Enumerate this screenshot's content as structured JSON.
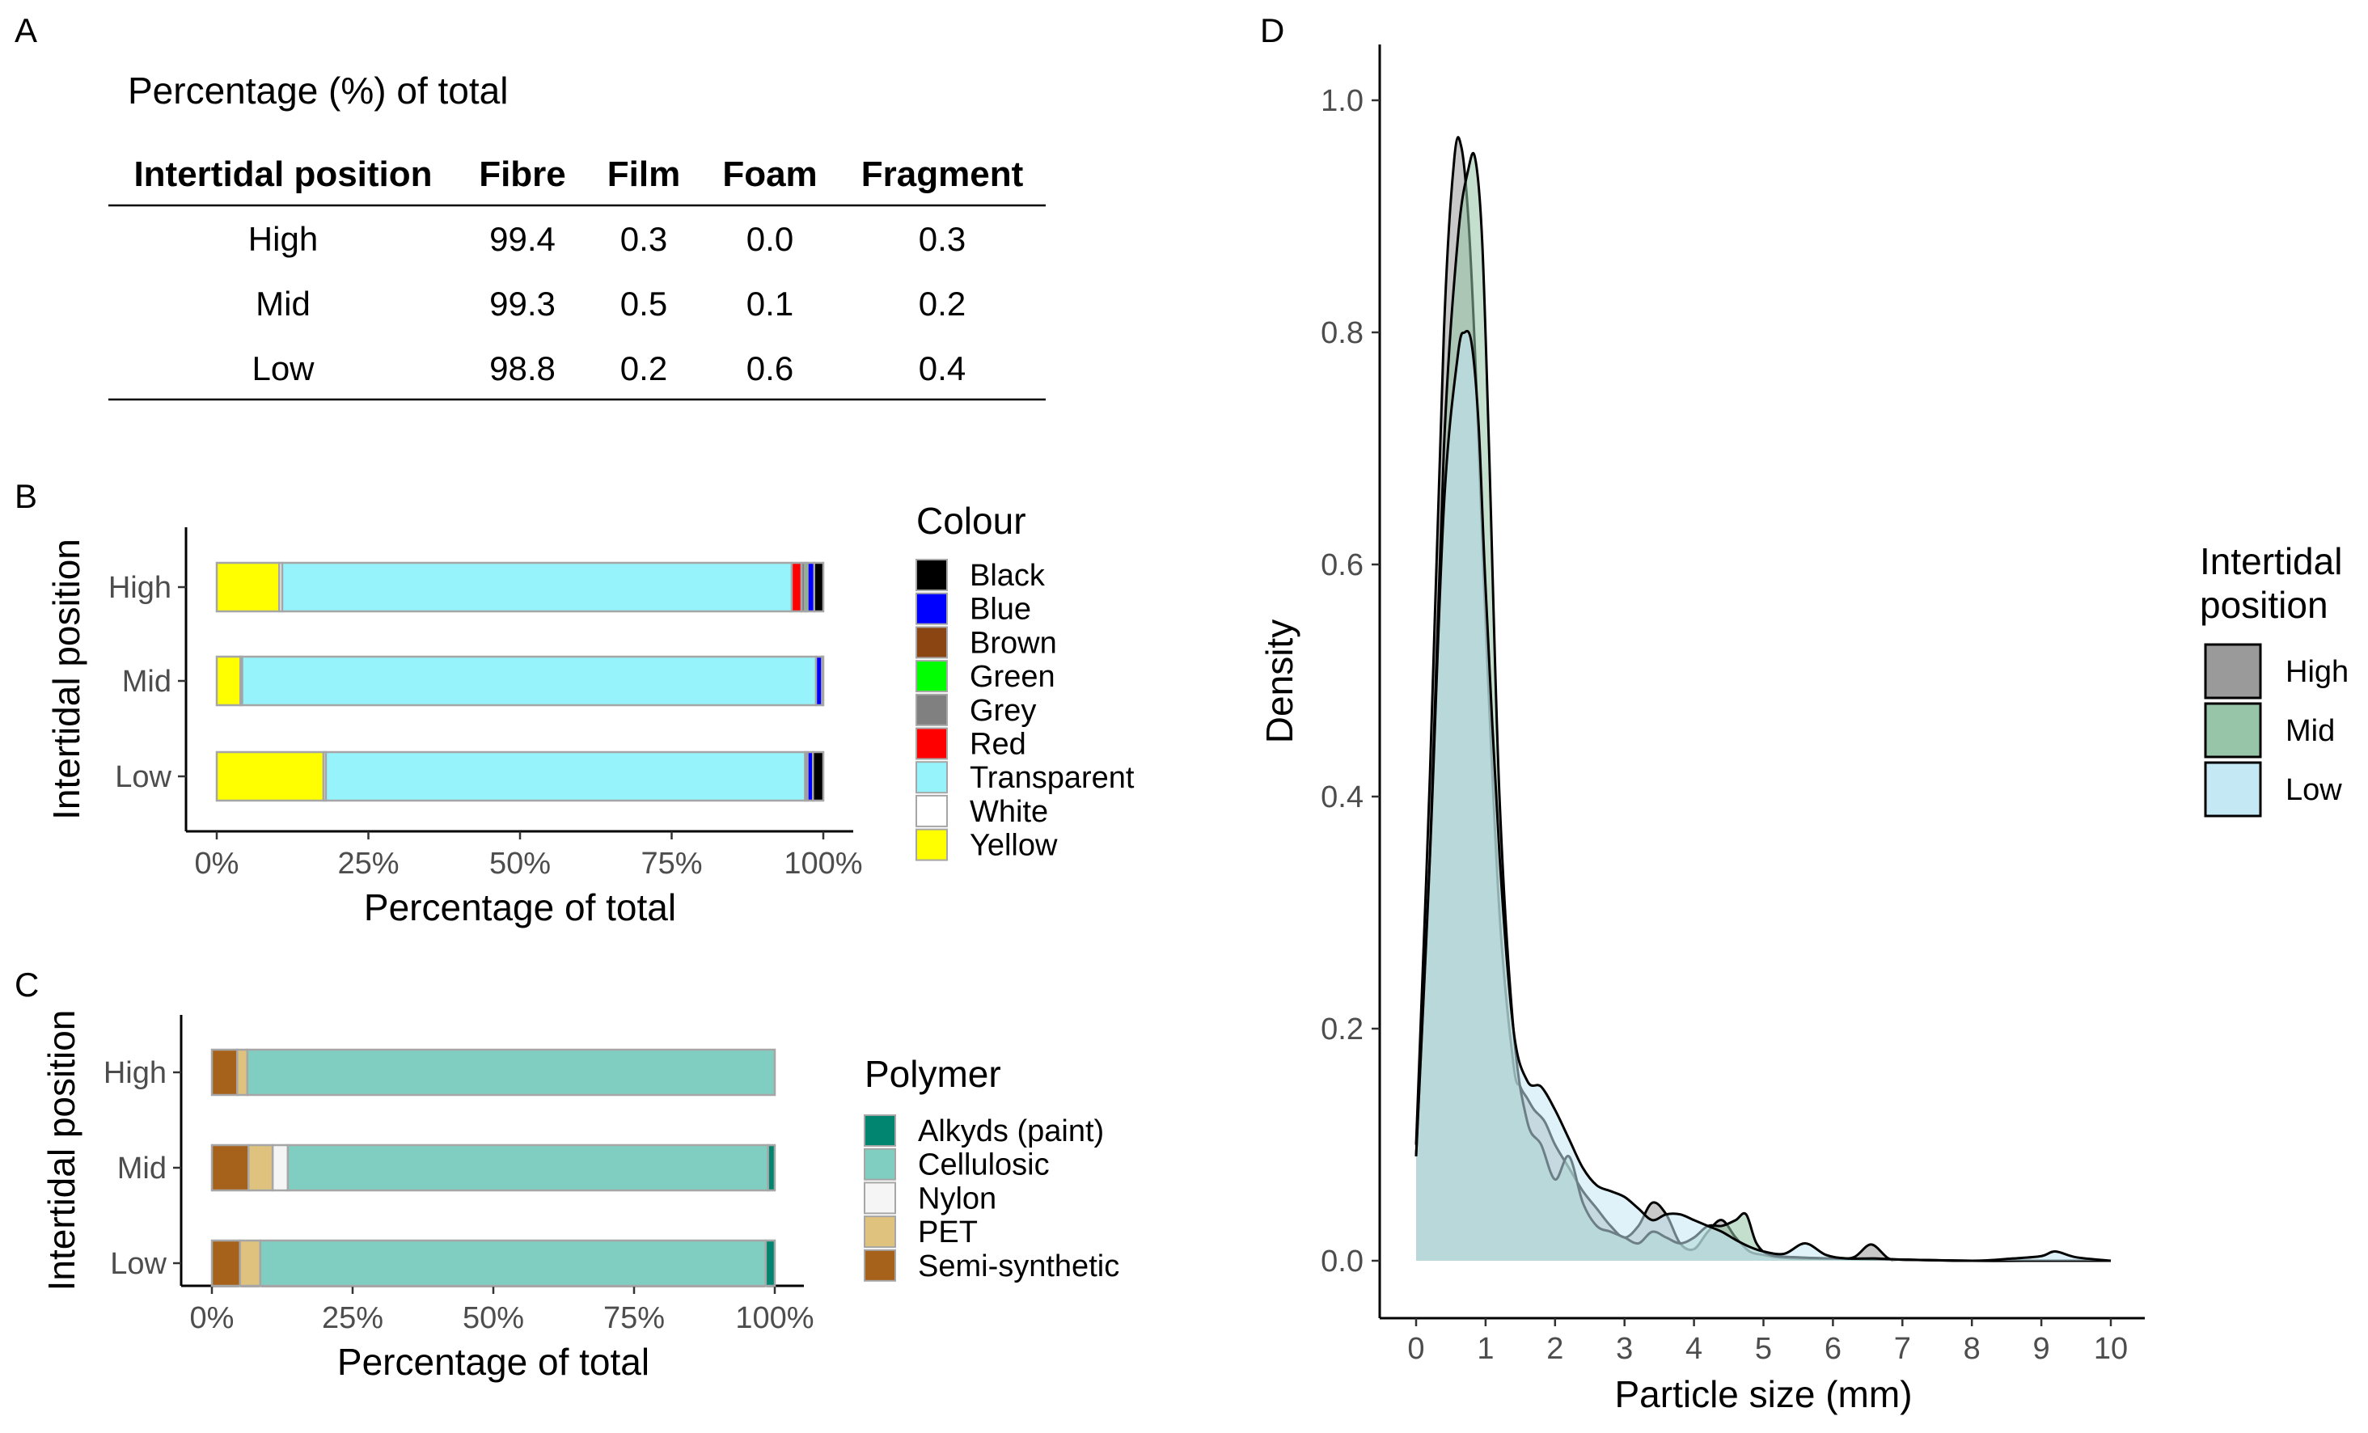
{
  "panel_labels": {
    "a": "A",
    "b": "B",
    "c": "C",
    "d": "D"
  },
  "table": {
    "caption": "Percentage (%) of total",
    "headers": [
      "Intertidal position",
      "Fibre",
      "Film",
      "Foam",
      "Fragment"
    ],
    "rows": [
      [
        "High",
        "99.4",
        "0.3",
        "0.0",
        "0.3"
      ],
      [
        "Mid",
        "99.3",
        "0.5",
        "0.1",
        "0.2"
      ],
      [
        "Low",
        "98.8",
        "0.2",
        "0.6",
        "0.4"
      ]
    ]
  },
  "chart_data": [
    {
      "panel": "B",
      "type": "bar",
      "orientation": "horizontal",
      "stacked": "percent",
      "categories": [
        "High",
        "Mid",
        "Low"
      ],
      "xlabel": "Percentage of total",
      "ylabel": "Intertidal position",
      "xticks": [
        "0%",
        "25%",
        "50%",
        "75%",
        "100%"
      ],
      "xlim": [
        0,
        100
      ],
      "legend_title": "Colour",
      "legend_position": "right",
      "series": [
        {
          "name": "Yellow",
          "color": "#ffff00",
          "values": [
            10.3,
            3.9,
            17.6
          ]
        },
        {
          "name": "White",
          "color": "#ffffff",
          "values": [
            0.5,
            0.3,
            0.4
          ]
        },
        {
          "name": "Transparent",
          "color": "#96f3fc",
          "values": [
            84.0,
            94.6,
            79.0
          ]
        },
        {
          "name": "Red",
          "color": "#ff0000",
          "values": [
            1.6,
            0.0,
            0.0
          ]
        },
        {
          "name": "Grey",
          "color": "#808080",
          "values": [
            0.6,
            0.0,
            0.4
          ]
        },
        {
          "name": "Green",
          "color": "#00ff00",
          "values": [
            0.4,
            0.0,
            0.0
          ]
        },
        {
          "name": "Brown",
          "color": "#8b4513",
          "values": [
            0.0,
            0.0,
            0.0
          ]
        },
        {
          "name": "Blue",
          "color": "#0000ff",
          "values": [
            1.1,
            1.0,
            0.9
          ]
        },
        {
          "name": "Black",
          "color": "#000000",
          "values": [
            1.5,
            0.2,
            1.7
          ]
        }
      ],
      "legend_order": [
        "Black",
        "Blue",
        "Brown",
        "Green",
        "Grey",
        "Red",
        "Transparent",
        "White",
        "Yellow"
      ]
    },
    {
      "panel": "C",
      "type": "bar",
      "orientation": "horizontal",
      "stacked": "percent",
      "categories": [
        "High",
        "Mid",
        "Low"
      ],
      "xlabel": "Percentage of total",
      "ylabel": "Intertidal position",
      "xticks": [
        "0%",
        "25%",
        "50%",
        "75%",
        "100%"
      ],
      "xlim": [
        0,
        100
      ],
      "legend_title": "Polymer",
      "legend_position": "right",
      "series": [
        {
          "name": "Semi-synthetic",
          "color": "#a6611a",
          "values": [
            4.5,
            6.5,
            5.0
          ]
        },
        {
          "name": "PET",
          "color": "#dfc27d",
          "values": [
            1.8,
            4.3,
            3.6
          ]
        },
        {
          "name": "Nylon",
          "color": "#f5f5f5",
          "values": [
            0.0,
            2.7,
            0.0
          ]
        },
        {
          "name": "Cellulosic",
          "color": "#80cdc1",
          "values": [
            93.7,
            85.3,
            89.8
          ]
        },
        {
          "name": "Alkyds (paint)",
          "color": "#018571",
          "values": [
            0.0,
            1.2,
            1.6
          ]
        }
      ],
      "legend_order": [
        "Alkyds (paint)",
        "Cellulosic",
        "Nylon",
        "PET",
        "Semi-synthetic"
      ]
    },
    {
      "panel": "D",
      "type": "area",
      "xlabel": "Particle size (mm)",
      "ylabel": "Density",
      "xlim": [
        0,
        10
      ],
      "ylim": [
        0,
        1.05
      ],
      "xticks": [
        0,
        1,
        2,
        3,
        4,
        5,
        6,
        7,
        8,
        9,
        10
      ],
      "yticks": [
        "0.0",
        "0.2",
        "0.4",
        "0.6",
        "0.8",
        "1.0"
      ],
      "legend_title": [
        "Intertidal",
        "position"
      ],
      "legend_position": "right",
      "series": [
        {
          "name": "High",
          "color": "#9a9a9a",
          "x": [
            0,
            0.2,
            0.4,
            0.55,
            0.65,
            0.75,
            0.85,
            1.0,
            1.2,
            1.4,
            1.5,
            1.6,
            1.7,
            1.85,
            2.0,
            2.2,
            2.4,
            2.6,
            2.8,
            3.0,
            3.2,
            3.4,
            3.6,
            3.8,
            4.0,
            4.2,
            4.4,
            4.6,
            4.8,
            5.0,
            5.2,
            5.5,
            6.0,
            6.3,
            6.55,
            6.8,
            7.0,
            8.0,
            9.0,
            10.0
          ],
          "y": [
            0.1,
            0.42,
            0.8,
            0.95,
            0.96,
            0.9,
            0.78,
            0.55,
            0.3,
            0.17,
            0.15,
            0.14,
            0.13,
            0.12,
            0.1,
            0.08,
            0.06,
            0.045,
            0.03,
            0.02,
            0.03,
            0.05,
            0.04,
            0.015,
            0.01,
            0.025,
            0.035,
            0.02,
            0.008,
            0.005,
            0.003,
            0.002,
            0.002,
            0.003,
            0.014,
            0.002,
            0.001,
            0.0,
            0.0,
            0.0
          ]
        },
        {
          "name": "Mid",
          "color": "#96c5a8",
          "x": [
            0,
            0.2,
            0.4,
            0.6,
            0.75,
            0.85,
            0.95,
            1.05,
            1.2,
            1.4,
            1.6,
            1.8,
            2.0,
            2.2,
            2.4,
            2.6,
            2.8,
            3.0,
            3.2,
            3.4,
            3.6,
            3.8,
            4.0,
            4.2,
            4.4,
            4.6,
            4.75,
            4.9,
            5.1,
            5.5,
            6.0,
            7.0,
            8.0,
            9.0,
            10.0
          ],
          "y": [
            0.09,
            0.35,
            0.7,
            0.88,
            0.94,
            0.95,
            0.88,
            0.7,
            0.4,
            0.2,
            0.12,
            0.1,
            0.07,
            0.09,
            0.05,
            0.03,
            0.025,
            0.02,
            0.015,
            0.025,
            0.02,
            0.015,
            0.02,
            0.03,
            0.03,
            0.035,
            0.04,
            0.015,
            0.005,
            0.003,
            0.002,
            0.001,
            0.0,
            0.0,
            0.0
          ]
        },
        {
          "name": "Low",
          "color": "#c5e8f5",
          "x": [
            0,
            0.2,
            0.4,
            0.6,
            0.7,
            0.8,
            0.9,
            1.0,
            1.2,
            1.4,
            1.6,
            1.8,
            2.0,
            2.2,
            2.4,
            2.6,
            2.8,
            3.0,
            3.2,
            3.4,
            3.6,
            3.8,
            4.0,
            4.2,
            4.4,
            4.6,
            4.8,
            5.0,
            5.3,
            5.6,
            5.9,
            6.2,
            6.6,
            7.0,
            8.0,
            8.6,
            9.0,
            9.2,
            9.5,
            10.0
          ],
          "y": [
            0.09,
            0.35,
            0.65,
            0.78,
            0.8,
            0.79,
            0.72,
            0.58,
            0.35,
            0.2,
            0.155,
            0.15,
            0.13,
            0.105,
            0.08,
            0.065,
            0.06,
            0.055,
            0.045,
            0.035,
            0.04,
            0.04,
            0.035,
            0.03,
            0.025,
            0.018,
            0.012,
            0.008,
            0.006,
            0.015,
            0.005,
            0.002,
            0.002,
            0.001,
            0.0,
            0.002,
            0.004,
            0.008,
            0.003,
            0.0
          ]
        }
      ]
    }
  ]
}
